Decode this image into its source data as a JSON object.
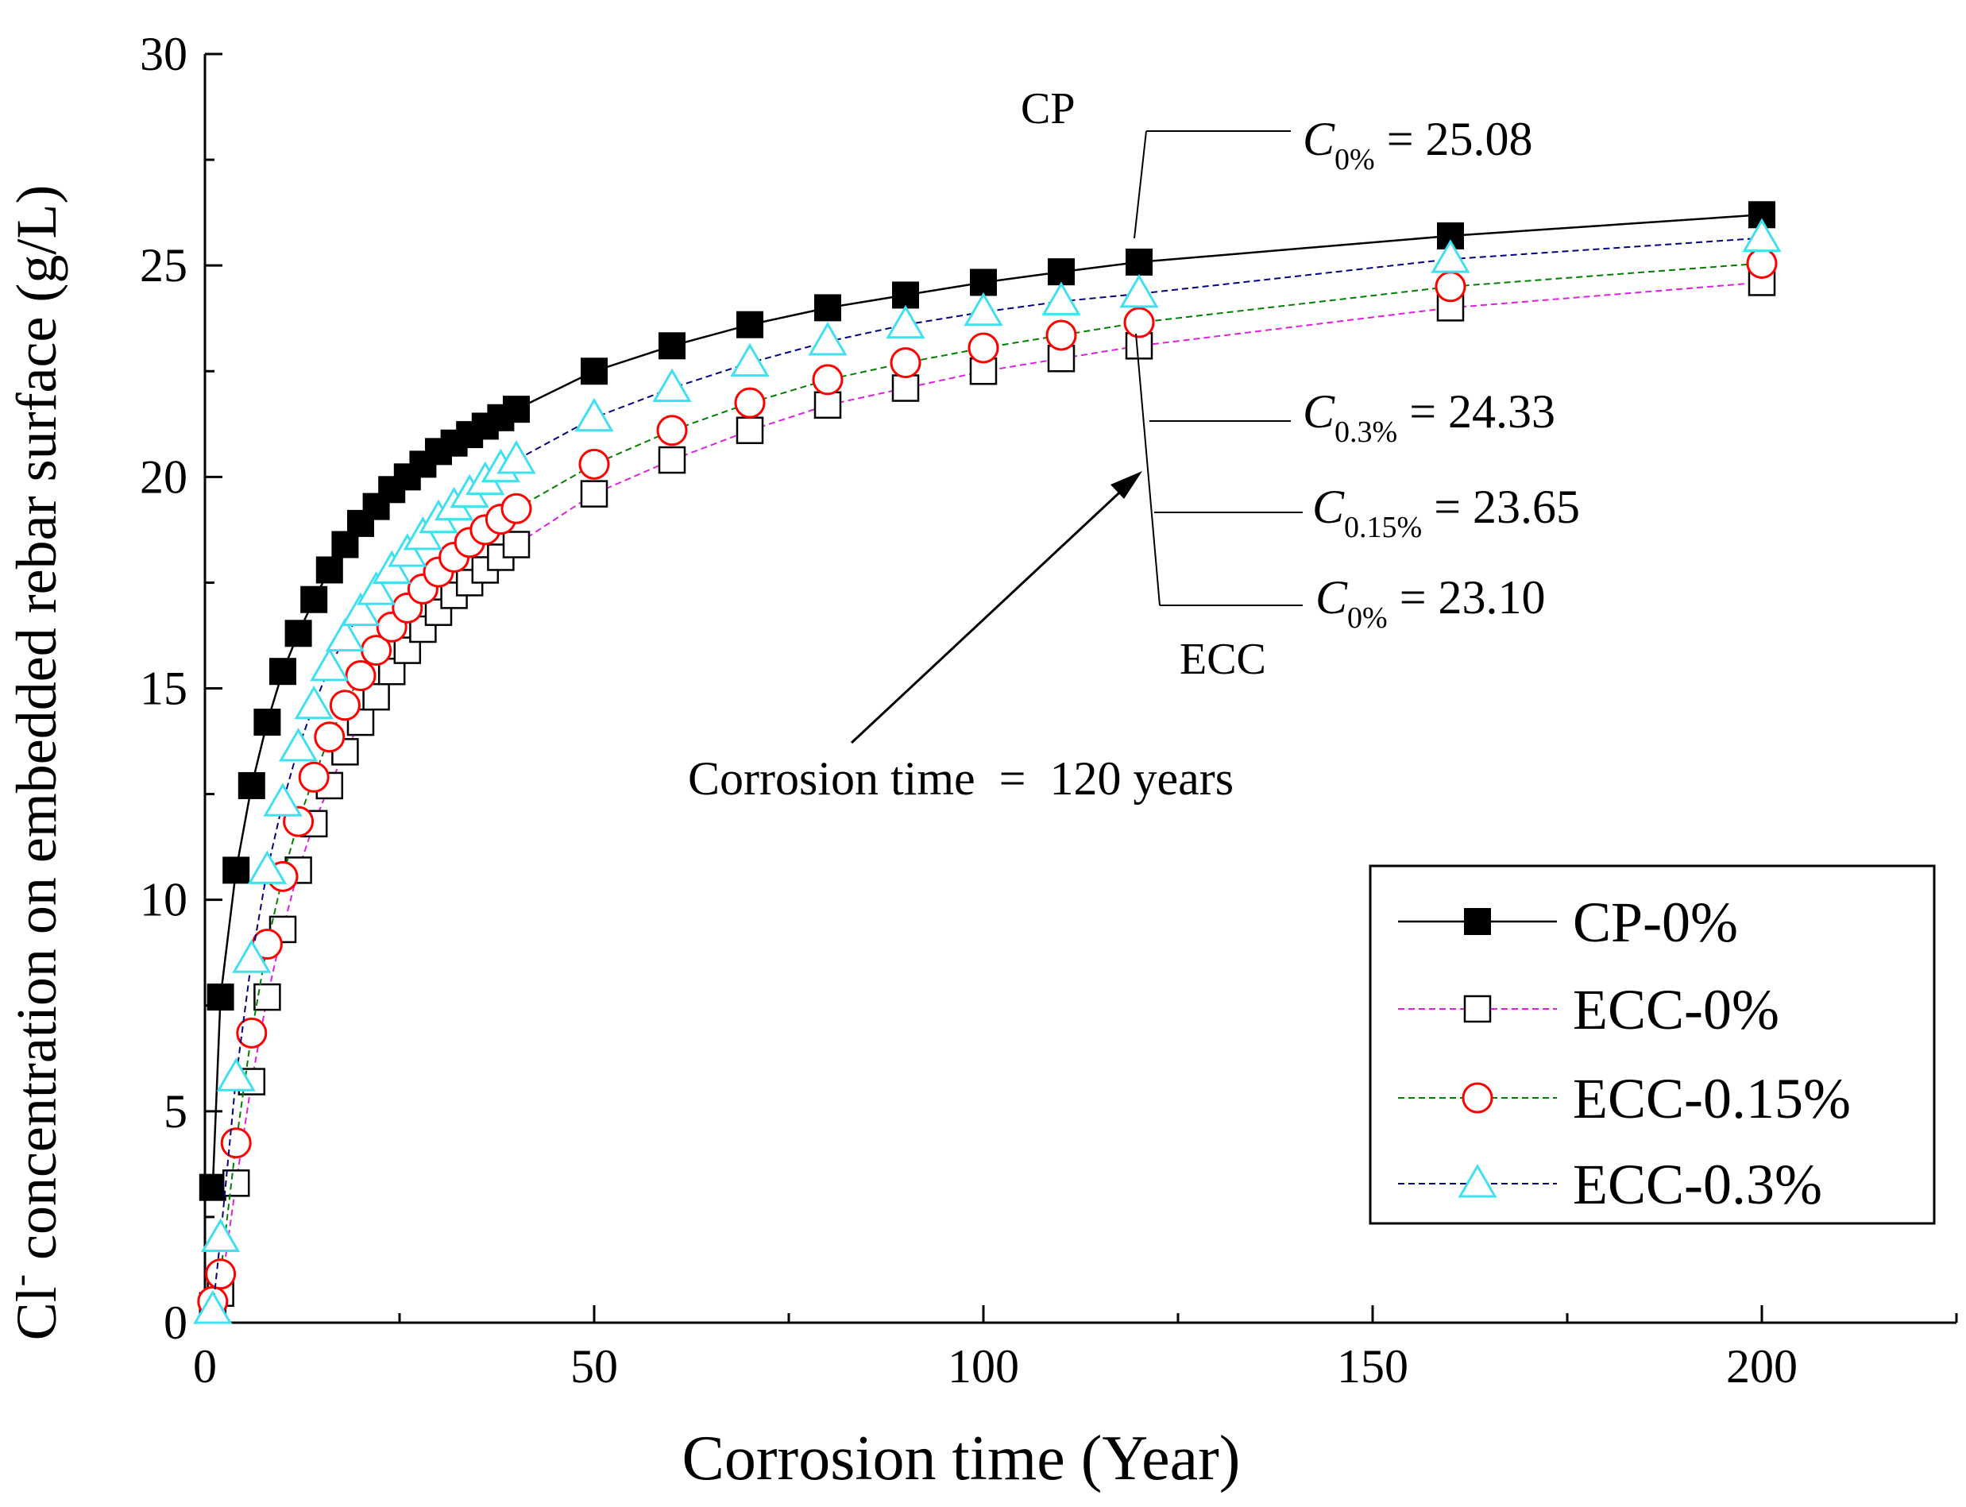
{
  "chart_data": {
    "type": "line",
    "xlabel": "Corrosion time (Year)",
    "ylabel_prefix": "Cl",
    "ylabel_sup": "-",
    "ylabel_rest": " concentration on embedded rebar surface (g/L)",
    "xlim": [
      0,
      225
    ],
    "ylim": [
      0,
      30
    ],
    "x_ticks": [
      "0",
      "50",
      "100",
      "150",
      "200"
    ],
    "y_ticks": [
      "0",
      "5",
      "10",
      "15",
      "20",
      "25",
      "30"
    ],
    "grid": false,
    "legend_position": "bottom-right",
    "x": [
      1,
      2,
      4,
      6,
      8,
      10,
      12,
      14,
      16,
      18,
      20,
      22,
      24,
      26,
      28,
      30,
      32,
      34,
      36,
      38,
      40,
      50,
      60,
      70,
      80,
      90,
      100,
      110,
      120,
      160,
      200
    ],
    "series": [
      {
        "name": "CP-0%",
        "color": "#000000",
        "marker": "filled-square",
        "line": "solid",
        "values": [
          3.2,
          7.7,
          10.7,
          12.7,
          14.2,
          15.4,
          16.3,
          17.1,
          17.8,
          18.4,
          18.9,
          19.3,
          19.7,
          20.0,
          20.3,
          20.6,
          20.8,
          21.0,
          21.2,
          21.4,
          21.6,
          22.5,
          23.1,
          23.6,
          24.0,
          24.3,
          24.6,
          24.85,
          25.08,
          25.7,
          26.2
        ]
      },
      {
        "name": "ECC-0%",
        "color": "#e020e0",
        "marker": "open-square",
        "line": "dashed",
        "values": [
          0.4,
          0.7,
          3.3,
          5.7,
          7.7,
          9.3,
          10.7,
          11.8,
          12.7,
          13.5,
          14.2,
          14.8,
          15.4,
          15.9,
          16.4,
          16.8,
          17.2,
          17.5,
          17.8,
          18.1,
          18.4,
          19.6,
          20.4,
          21.1,
          21.7,
          22.1,
          22.5,
          22.8,
          23.1,
          24.0,
          24.6
        ]
      },
      {
        "name": "ECC-0.15%",
        "color": "#008000",
        "marker": "open-circle",
        "line": "dashed",
        "values": [
          0.5,
          1.15,
          4.25,
          6.85,
          8.95,
          10.55,
          11.85,
          12.9,
          13.85,
          14.6,
          15.3,
          15.9,
          16.45,
          16.9,
          17.35,
          17.75,
          18.1,
          18.45,
          18.75,
          19.0,
          19.25,
          20.3,
          21.1,
          21.75,
          22.3,
          22.7,
          23.05,
          23.35,
          23.65,
          24.5,
          25.05
        ]
      },
      {
        "name": "ECC-0.3%",
        "color": "#000080",
        "marker": "open-triangle",
        "line": "dashed",
        "values": [
          0.3,
          2.0,
          5.8,
          8.6,
          10.7,
          12.3,
          13.6,
          14.6,
          15.5,
          16.2,
          16.8,
          17.3,
          17.8,
          18.2,
          18.6,
          19.0,
          19.3,
          19.6,
          19.9,
          20.2,
          20.4,
          21.4,
          22.1,
          22.7,
          23.2,
          23.6,
          23.9,
          24.15,
          24.33,
          25.15,
          25.65
        ]
      }
    ],
    "annotations": {
      "cp_label": "CP",
      "ecc_label": "ECC",
      "corrosion_note": "Corrosion time  =  120 years",
      "values": [
        {
          "sub": "0%",
          "text": " = 25.08"
        },
        {
          "sub": "0.3%",
          "text": " = 24.33"
        },
        {
          "sub": "0.15%",
          "text": " = 23.65"
        },
        {
          "sub": "0%",
          "text": " = 23.10"
        }
      ],
      "c_symbol": "C"
    }
  }
}
